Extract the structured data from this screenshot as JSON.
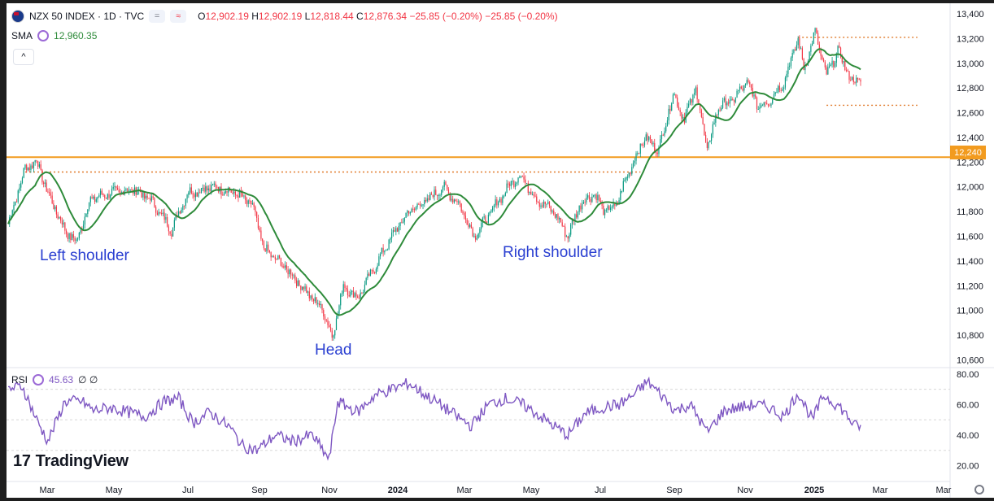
{
  "legend": {
    "symbol": "NZX 50 INDEX · 1D · TVC",
    "icon1": "=",
    "icon2": "≈",
    "open_label": "O",
    "open": "12,902.19",
    "high_label": "H",
    "high": "12,902.19",
    "low_label": "L",
    "low": "12,818.44",
    "close_label": "C",
    "close": "12,876.34",
    "change": "−25.85 (−0.20%)",
    "change2": "−25.85 (−0.20%)"
  },
  "sma": {
    "label": "SMA",
    "value": "12,960.35"
  },
  "collapse": "^",
  "rsi": {
    "label": "RSI",
    "value": "45.63",
    "extra": "∅ ∅"
  },
  "brand": {
    "mark": "17",
    "name": "TradingView"
  },
  "annotations": {
    "left_shoulder": "Left shoulder",
    "head": "Head",
    "right_shoulder": "Right shoulder"
  },
  "price_tag": "12,240",
  "colors": {
    "up": "#089981",
    "down": "#f23645",
    "sma": "#2e8b3a",
    "rsi": "#7e57c2",
    "level": "#f29b1f",
    "annotation": "#2a3fd1"
  },
  "icons": {
    "settings": "gear-icon",
    "flag": "nz-flag-icon"
  },
  "chart_data": {
    "type": "candlestick",
    "y_ticks": [
      "13,400",
      "13,200",
      "13,000",
      "12,800",
      "12,600",
      "12,400",
      "12,200",
      "12,000",
      "11,800",
      "11,600",
      "11,400",
      "11,200",
      "11,000",
      "10,800",
      "10,600"
    ],
    "ylim": [
      10550,
      13420
    ],
    "x_ticks": [
      "Mar",
      "May",
      "Jul",
      "Sep",
      "Nov",
      "2024",
      "Mar",
      "May",
      "Jul",
      "Sep",
      "Nov",
      "2025",
      "Mar",
      "Mar"
    ],
    "horizontal_level": 12240,
    "neckline_level": 12120,
    "range_top": 13210,
    "range_bottom": 12660,
    "rsi_ticks": [
      "80.00",
      "60.00",
      "40.00",
      "20.00"
    ],
    "rsi_ylim": [
      15,
      82
    ],
    "price_anchors": [
      [
        0,
        11700
      ],
      [
        12,
        12150
      ],
      [
        20,
        12210
      ],
      [
        28,
        11950
      ],
      [
        40,
        11650
      ],
      [
        48,
        11550
      ],
      [
        58,
        11900
      ],
      [
        72,
        11950
      ],
      [
        88,
        11980
      ],
      [
        100,
        11900
      ],
      [
        115,
        11650
      ],
      [
        126,
        11950
      ],
      [
        145,
        12000
      ],
      [
        160,
        11950
      ],
      [
        172,
        11850
      ],
      [
        180,
        11500
      ],
      [
        195,
        11350
      ],
      [
        210,
        11150
      ],
      [
        222,
        11000
      ],
      [
        228,
        10780
      ],
      [
        236,
        11200
      ],
      [
        246,
        11100
      ],
      [
        258,
        11350
      ],
      [
        270,
        11600
      ],
      [
        282,
        11800
      ],
      [
        296,
        11900
      ],
      [
        306,
        12000
      ],
      [
        318,
        11850
      ],
      [
        328,
        11600
      ],
      [
        340,
        11800
      ],
      [
        352,
        12000
      ],
      [
        360,
        12100
      ],
      [
        372,
        11900
      ],
      [
        384,
        11800
      ],
      [
        394,
        11600
      ],
      [
        402,
        11850
      ],
      [
        412,
        11950
      ],
      [
        420,
        11800
      ],
      [
        428,
        11850
      ],
      [
        436,
        12100
      ],
      [
        448,
        12400
      ],
      [
        458,
        12300
      ],
      [
        468,
        12750
      ],
      [
        476,
        12550
      ],
      [
        484,
        12800
      ],
      [
        492,
        12300
      ],
      [
        500,
        12650
      ],
      [
        510,
        12700
      ],
      [
        520,
        12850
      ],
      [
        528,
        12650
      ],
      [
        536,
        12700
      ],
      [
        546,
        12850
      ],
      [
        556,
        13200
      ],
      [
        560,
        12950
      ],
      [
        568,
        13250
      ],
      [
        576,
        12900
      ],
      [
        584,
        13100
      ],
      [
        594,
        12850
      ],
      [
        600,
        12870
      ]
    ],
    "rsi_anchors": [
      [
        0,
        70
      ],
      [
        10,
        72
      ],
      [
        20,
        50
      ],
      [
        28,
        36
      ],
      [
        40,
        62
      ],
      [
        52,
        62
      ],
      [
        60,
        56
      ],
      [
        72,
        58
      ],
      [
        84,
        55
      ],
      [
        96,
        52
      ],
      [
        110,
        62
      ],
      [
        120,
        64
      ],
      [
        130,
        48
      ],
      [
        142,
        55
      ],
      [
        156,
        45
      ],
      [
        165,
        33
      ],
      [
        175,
        30
      ],
      [
        188,
        40
      ],
      [
        200,
        36
      ],
      [
        214,
        40
      ],
      [
        226,
        24
      ],
      [
        232,
        62
      ],
      [
        246,
        55
      ],
      [
        258,
        66
      ],
      [
        270,
        70
      ],
      [
        282,
        74
      ],
      [
        294,
        66
      ],
      [
        304,
        60
      ],
      [
        316,
        52
      ],
      [
        326,
        46
      ],
      [
        338,
        60
      ],
      [
        350,
        64
      ],
      [
        362,
        60
      ],
      [
        372,
        54
      ],
      [
        384,
        46
      ],
      [
        394,
        40
      ],
      [
        406,
        54
      ],
      [
        418,
        58
      ],
      [
        430,
        60
      ],
      [
        440,
        66
      ],
      [
        450,
        75
      ],
      [
        460,
        66
      ],
      [
        470,
        56
      ],
      [
        480,
        60
      ],
      [
        492,
        42
      ],
      [
        504,
        56
      ],
      [
        514,
        58
      ],
      [
        526,
        60
      ],
      [
        536,
        58
      ],
      [
        546,
        52
      ],
      [
        556,
        68
      ],
      [
        566,
        50
      ],
      [
        574,
        66
      ],
      [
        586,
        58
      ],
      [
        596,
        46
      ],
      [
        600,
        46
      ]
    ]
  }
}
